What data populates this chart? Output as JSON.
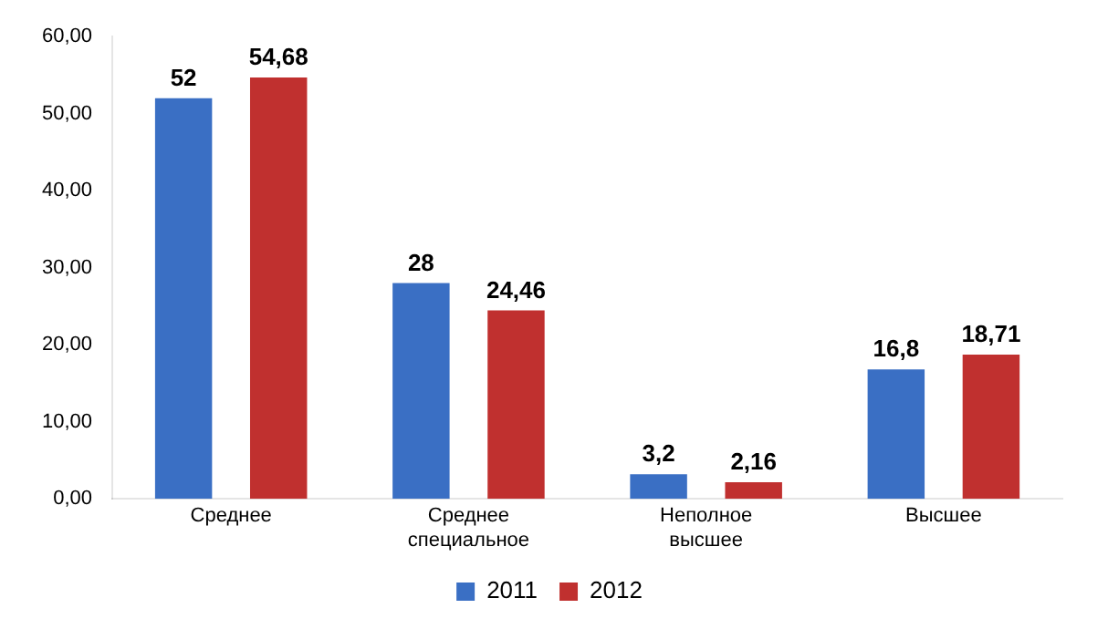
{
  "chart_data": {
    "type": "bar",
    "categories": [
      "Среднее",
      "Среднее специальное",
      "Неполное высшее",
      "Высшее"
    ],
    "series": [
      {
        "name": "2011",
        "color": "#3a6fc4",
        "values": [
          52,
          28,
          3.2,
          16.8
        ],
        "value_labels": [
          "52",
          "28",
          "3,2",
          "16,8"
        ]
      },
      {
        "name": "2012",
        "color": "#c0302f",
        "values": [
          54.68,
          24.46,
          2.16,
          18.71
        ],
        "value_labels": [
          "54,68",
          "24,46",
          "2,16",
          "18,71"
        ]
      }
    ],
    "ylim": [
      0,
      60
    ],
    "yticks": [
      {
        "value": 0,
        "label": "0,00"
      },
      {
        "value": 10,
        "label": "10,00"
      },
      {
        "value": 20,
        "label": "20,00"
      },
      {
        "value": 30,
        "label": "30,00"
      },
      {
        "value": 40,
        "label": "40,00"
      },
      {
        "value": 50,
        "label": "50,00"
      },
      {
        "value": 60,
        "label": "60,00"
      }
    ],
    "grid": false,
    "legend": "bottom"
  }
}
